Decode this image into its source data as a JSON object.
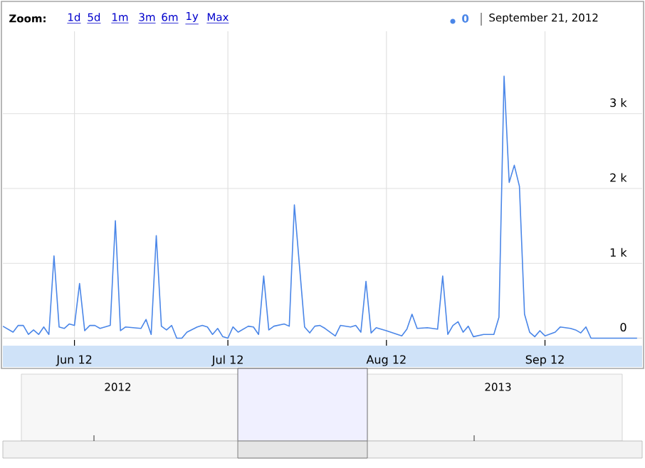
{
  "chart_data": {
    "type": "line",
    "color": "#4a86e8",
    "x": [
      "2012-05-29",
      "2012-05-31",
      "2012-06-01",
      "2012-06-02",
      "2012-06-03",
      "2012-06-04",
      "2012-06-05",
      "2012-06-06",
      "2012-06-07",
      "2012-06-08",
      "2012-06-09",
      "2012-06-10",
      "2012-06-11",
      "2012-06-12",
      "2012-06-13",
      "2012-06-14",
      "2012-06-15",
      "2012-06-16",
      "2012-06-17",
      "2012-06-19",
      "2012-06-20",
      "2012-06-21",
      "2012-06-22",
      "2012-06-25",
      "2012-06-26",
      "2012-06-27",
      "2012-06-28",
      "2012-06-29",
      "2012-06-30",
      "2012-07-01",
      "2012-07-02",
      "2012-07-03",
      "2012-07-04",
      "2012-07-06",
      "2012-07-07",
      "2012-07-08",
      "2012-07-09",
      "2012-07-10",
      "2012-07-11",
      "2012-07-12",
      "2012-07-13",
      "2012-07-14",
      "2012-07-16",
      "2012-07-17",
      "2012-07-18",
      "2012-07-19",
      "2012-07-20",
      "2012-07-21",
      "2012-07-23",
      "2012-07-24",
      "2012-07-25",
      "2012-07-27",
      "2012-07-28",
      "2012-07-29",
      "2012-07-30",
      "2012-07-31",
      "2012-08-02",
      "2012-08-03",
      "2012-08-05",
      "2012-08-06",
      "2012-08-07",
      "2012-08-08",
      "2012-08-09",
      "2012-08-10",
      "2012-08-12",
      "2012-08-15",
      "2012-08-16",
      "2012-08-17",
      "2012-08-18",
      "2012-08-20",
      "2012-08-22",
      "2012-08-23",
      "2012-08-24",
      "2012-08-25",
      "2012-08-26",
      "2012-08-27",
      "2012-08-28",
      "2012-08-29",
      "2012-08-31",
      "2012-09-02",
      "2012-09-03",
      "2012-09-04",
      "2012-09-05",
      "2012-09-06",
      "2012-09-07",
      "2012-09-08",
      "2012-09-09",
      "2012-09-10",
      "2012-09-11",
      "2012-09-12",
      "2012-09-14",
      "2012-09-15",
      "2012-09-17",
      "2012-09-18",
      "2012-09-19",
      "2012-09-20",
      "2012-09-21",
      "2012-09-30"
    ],
    "values": [
      160,
      80,
      170,
      170,
      50,
      110,
      50,
      150,
      50,
      1100,
      150,
      130,
      190,
      170,
      730,
      100,
      170,
      170,
      130,
      170,
      1570,
      100,
      150,
      130,
      250,
      50,
      1370,
      160,
      110,
      170,
      0,
      0,
      80,
      150,
      170,
      150,
      50,
      130,
      20,
      0,
      150,
      80,
      160,
      150,
      50,
      830,
      110,
      160,
      190,
      160,
      1780,
      150,
      70,
      160,
      170,
      130,
      30,
      170,
      150,
      170,
      80,
      760,
      70,
      140,
      100,
      30,
      120,
      320,
      130,
      140,
      120,
      830,
      50,
      170,
      220,
      80,
      160,
      20,
      50,
      50,
      280,
      3500,
      2080,
      2310,
      2030,
      320,
      80,
      20,
      100,
      30,
      80,
      150,
      130,
      110,
      70,
      150,
      0,
      0
    ],
    "xlim": [
      "2012-05-29",
      "2012-10-01"
    ],
    "xticks": [
      {
        "value": "2012-06-12",
        "label": "Jun 12"
      },
      {
        "value": "2012-07-12",
        "label": "Jul 12"
      },
      {
        "value": "2012-08-12",
        "label": "Aug 12"
      },
      {
        "value": "2012-09-12",
        "label": "Sep 12"
      }
    ],
    "ylim": [
      -100,
      4100
    ],
    "yticks": [
      0,
      {
        "value": 1000,
        "label": "1 k"
      },
      {
        "value": 2000,
        "label": "2 k"
      },
      {
        "value": 3000,
        "label": "3 k"
      }
    ],
    "grid": true,
    "annotations": [
      "Zoom:",
      "1d",
      "5d",
      "1m",
      "3m",
      "6m",
      "1y",
      "Max",
      "0",
      "September 21, 2012",
      "2012",
      "2013"
    ]
  }
}
